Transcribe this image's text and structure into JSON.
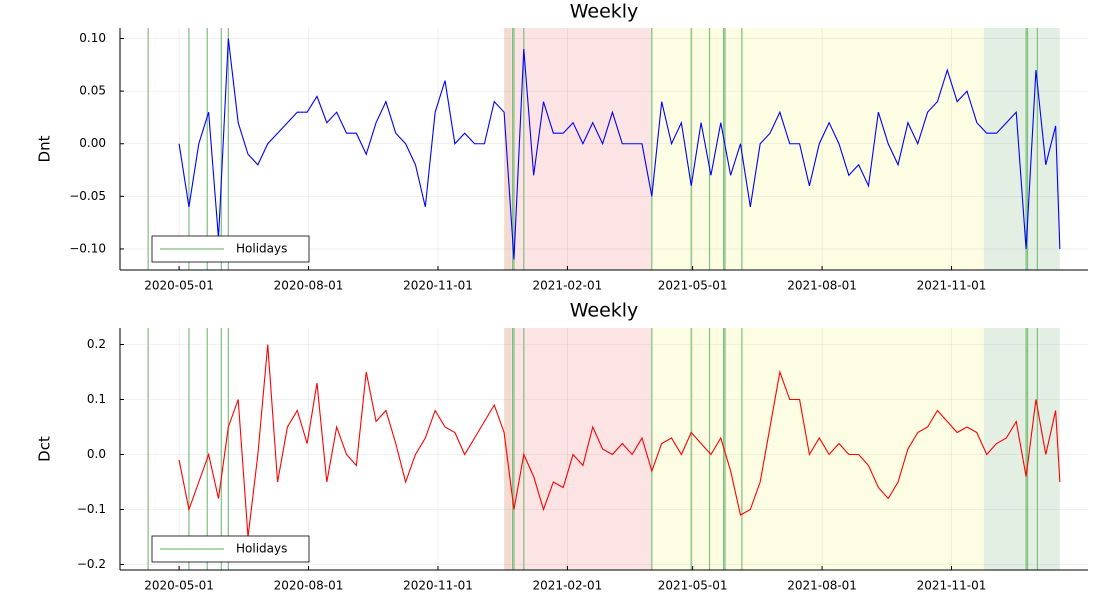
{
  "chart_data": [
    {
      "type": "line",
      "title": "Weekly",
      "ylabel": "Dnt",
      "color": "#0000ff",
      "x": [
        "2020-05-01",
        "2020-05-08",
        "2020-05-15",
        "2020-05-22",
        "2020-05-29",
        "2020-06-05",
        "2020-06-12",
        "2020-06-19",
        "2020-06-26",
        "2020-07-03",
        "2020-07-10",
        "2020-07-17",
        "2020-07-24",
        "2020-07-31",
        "2020-08-07",
        "2020-08-14",
        "2020-08-21",
        "2020-08-28",
        "2020-09-04",
        "2020-09-11",
        "2020-09-18",
        "2020-09-25",
        "2020-10-02",
        "2020-10-09",
        "2020-10-16",
        "2020-10-23",
        "2020-10-30",
        "2020-11-06",
        "2020-11-13",
        "2020-11-20",
        "2020-11-27",
        "2020-12-04",
        "2020-12-11",
        "2020-12-18",
        "2020-12-25",
        "2021-01-01",
        "2021-01-08",
        "2021-01-15",
        "2021-01-22",
        "2021-01-29",
        "2021-02-05",
        "2021-02-12",
        "2021-02-19",
        "2021-02-26",
        "2021-03-05",
        "2021-03-12",
        "2021-03-19",
        "2021-03-26",
        "2021-04-02",
        "2021-04-09",
        "2021-04-16",
        "2021-04-23",
        "2021-04-30",
        "2021-05-07",
        "2021-05-14",
        "2021-05-21",
        "2021-05-28",
        "2021-06-04",
        "2021-06-11",
        "2021-06-18",
        "2021-06-25",
        "2021-07-02",
        "2021-07-09",
        "2021-07-16",
        "2021-07-23",
        "2021-07-30",
        "2021-08-06",
        "2021-08-13",
        "2021-08-20",
        "2021-08-27",
        "2021-09-03",
        "2021-09-10",
        "2021-09-17",
        "2021-09-24",
        "2021-10-01",
        "2021-10-08",
        "2021-10-15",
        "2021-10-22",
        "2021-10-29",
        "2021-11-05",
        "2021-11-12",
        "2021-11-19",
        "2021-11-26",
        "2021-12-03",
        "2021-12-10",
        "2021-12-17",
        "2021-12-24",
        "2021-12-31",
        "2022-01-07",
        "2022-01-14",
        "2022-01-17"
      ],
      "values": [
        0.0,
        -0.06,
        0.0,
        0.03,
        -0.09,
        0.1,
        0.02,
        -0.01,
        -0.02,
        0.0,
        0.01,
        0.02,
        0.03,
        0.03,
        0.045,
        0.02,
        0.03,
        0.01,
        0.01,
        -0.01,
        0.02,
        0.04,
        0.01,
        0.0,
        -0.02,
        -0.06,
        0.03,
        0.06,
        0.0,
        0.01,
        0.0,
        0.0,
        0.04,
        0.03,
        -0.11,
        0.09,
        -0.03,
        0.04,
        0.01,
        0.01,
        0.02,
        0.0,
        0.02,
        0.0,
        0.03,
        0.0,
        0.0,
        0.0,
        -0.05,
        0.04,
        0.0,
        0.02,
        -0.04,
        0.02,
        -0.03,
        0.02,
        -0.03,
        0.0,
        -0.06,
        0.0,
        0.01,
        0.03,
        0.0,
        0.0,
        -0.04,
        0.0,
        0.02,
        0.0,
        -0.03,
        -0.02,
        -0.04,
        0.03,
        0.0,
        -0.02,
        0.02,
        0.0,
        0.03,
        0.04,
        0.07,
        0.04,
        0.05,
        0.02,
        0.01,
        0.01,
        0.02,
        0.03,
        -0.1,
        0.07,
        -0.02,
        0.017,
        -0.1
      ],
      "xlim": [
        "2020-03-20",
        "2022-02-06"
      ],
      "xticks": [
        "2020-05-01",
        "2020-08-01",
        "2020-11-01",
        "2021-02-01",
        "2021-05-01",
        "2021-08-01",
        "2021-11-01"
      ],
      "ylim": [
        -0.12,
        0.11
      ],
      "yticks": [
        {
          "value": 0.1,
          "label": "0.10"
        },
        {
          "value": 0.05,
          "label": "0.05"
        },
        {
          "value": 0,
          "label": "0.00"
        },
        {
          "value": -0.05,
          "label": "−0.05"
        },
        {
          "value": -0.1,
          "label": "−0.10"
        }
      ],
      "grid": true,
      "legend": "bottom-left",
      "spans": [
        {
          "start": "2020-12-18",
          "end": "2020-12-23",
          "color": "#f3dccf"
        },
        {
          "start": "2020-12-23",
          "end": "2021-04-02",
          "color": "#fde4e4"
        },
        {
          "start": "2021-04-02",
          "end": "2021-11-24",
          "color": "#fdfde3"
        },
        {
          "start": "2021-11-24",
          "end": "2022-01-17",
          "color": "#e4efe4"
        }
      ],
      "holidays": {
        "name": "Holidays",
        "color": "#7fbf7f",
        "dates": [
          "2020-04-09",
          "2020-05-08",
          "2020-05-21",
          "2020-05-31",
          "2020-06-05",
          "2020-12-24",
          "2020-12-25",
          "2021-01-01",
          "2021-04-02",
          "2021-04-30",
          "2021-05-13",
          "2021-05-23",
          "2021-05-24",
          "2021-06-05",
          "2021-12-24",
          "2021-12-25",
          "2022-01-01"
        ]
      }
    },
    {
      "type": "line",
      "title": "Weekly",
      "ylabel": "Dct",
      "color": "#ff0000",
      "x": [
        "2020-05-01",
        "2020-05-08",
        "2020-05-15",
        "2020-05-22",
        "2020-05-29",
        "2020-06-05",
        "2020-06-12",
        "2020-06-19",
        "2020-06-26",
        "2020-07-03",
        "2020-07-10",
        "2020-07-17",
        "2020-07-24",
        "2020-07-31",
        "2020-08-07",
        "2020-08-14",
        "2020-08-21",
        "2020-08-28",
        "2020-09-04",
        "2020-09-11",
        "2020-09-18",
        "2020-09-25",
        "2020-10-02",
        "2020-10-09",
        "2020-10-16",
        "2020-10-23",
        "2020-10-30",
        "2020-11-06",
        "2020-11-13",
        "2020-11-20",
        "2020-11-27",
        "2020-12-04",
        "2020-12-11",
        "2020-12-18",
        "2020-12-25",
        "2021-01-01",
        "2021-01-08",
        "2021-01-15",
        "2021-01-22",
        "2021-01-29",
        "2021-02-05",
        "2021-02-12",
        "2021-02-19",
        "2021-02-26",
        "2021-03-05",
        "2021-03-12",
        "2021-03-19",
        "2021-03-26",
        "2021-04-02",
        "2021-04-09",
        "2021-04-16",
        "2021-04-23",
        "2021-04-30",
        "2021-05-07",
        "2021-05-14",
        "2021-05-21",
        "2021-05-28",
        "2021-06-04",
        "2021-06-11",
        "2021-06-18",
        "2021-06-25",
        "2021-07-02",
        "2021-07-09",
        "2021-07-16",
        "2021-07-23",
        "2021-07-30",
        "2021-08-06",
        "2021-08-13",
        "2021-08-20",
        "2021-08-27",
        "2021-09-03",
        "2021-09-10",
        "2021-09-17",
        "2021-09-24",
        "2021-10-01",
        "2021-10-08",
        "2021-10-15",
        "2021-10-22",
        "2021-10-29",
        "2021-11-05",
        "2021-11-12",
        "2021-11-19",
        "2021-11-26",
        "2021-12-03",
        "2021-12-10",
        "2021-12-17",
        "2021-12-24",
        "2021-12-31",
        "2022-01-07",
        "2022-01-14",
        "2022-01-17"
      ],
      "values": [
        -0.01,
        -0.1,
        -0.05,
        0.0,
        -0.08,
        0.05,
        0.1,
        -0.15,
        0.0,
        0.2,
        -0.05,
        0.05,
        0.08,
        0.02,
        0.13,
        -0.05,
        0.05,
        0.0,
        -0.02,
        0.15,
        0.06,
        0.08,
        0.02,
        -0.05,
        0.0,
        0.03,
        0.08,
        0.05,
        0.04,
        0.0,
        0.03,
        0.06,
        0.09,
        0.04,
        -0.1,
        0.0,
        -0.04,
        -0.1,
        -0.05,
        -0.06,
        0.0,
        -0.02,
        0.05,
        0.01,
        0.0,
        0.02,
        0.0,
        0.03,
        -0.03,
        0.02,
        0.03,
        0.0,
        0.04,
        0.02,
        0.0,
        0.03,
        -0.03,
        -0.11,
        -0.1,
        -0.05,
        0.05,
        0.15,
        0.1,
        0.1,
        0.0,
        0.03,
        0.0,
        0.02,
        0.0,
        0.0,
        -0.02,
        -0.06,
        -0.08,
        -0.05,
        0.01,
        0.04,
        0.05,
        0.08,
        0.06,
        0.04,
        0.05,
        0.04,
        0.0,
        0.02,
        0.03,
        0.06,
        -0.04,
        0.1,
        0.0,
        0.08,
        -0.05
      ],
      "xlim": [
        "2020-03-20",
        "2022-02-06"
      ],
      "xticks": [
        "2020-05-01",
        "2020-08-01",
        "2020-11-01",
        "2021-02-01",
        "2021-05-01",
        "2021-08-01",
        "2021-11-01"
      ],
      "ylim": [
        -0.21,
        0.23
      ],
      "yticks": [
        0.2,
        0.1,
        {
          "value": 0,
          "label": "0.0"
        },
        {
          "value": -0.1,
          "label": "−0.1"
        },
        {
          "value": -0.2,
          "label": "−0.2"
        }
      ],
      "grid": true,
      "legend": "bottom-left",
      "spans": [
        {
          "start": "2020-12-18",
          "end": "2020-12-23",
          "color": "#f3dccf"
        },
        {
          "start": "2020-12-23",
          "end": "2021-04-02",
          "color": "#fde4e4"
        },
        {
          "start": "2021-04-02",
          "end": "2021-11-24",
          "color": "#fdfde3"
        },
        {
          "start": "2021-11-24",
          "end": "2022-01-17",
          "color": "#e4efe4"
        }
      ],
      "holidays": {
        "name": "Holidays",
        "color": "#7fbf7f",
        "dates": [
          "2020-04-09",
          "2020-05-08",
          "2020-05-21",
          "2020-05-31",
          "2020-06-05",
          "2020-12-24",
          "2020-12-25",
          "2021-01-01",
          "2021-04-02",
          "2021-04-30",
          "2021-05-13",
          "2021-05-23",
          "2021-05-24",
          "2021-06-05",
          "2021-12-24",
          "2021-12-25",
          "2022-01-01"
        ]
      }
    }
  ]
}
